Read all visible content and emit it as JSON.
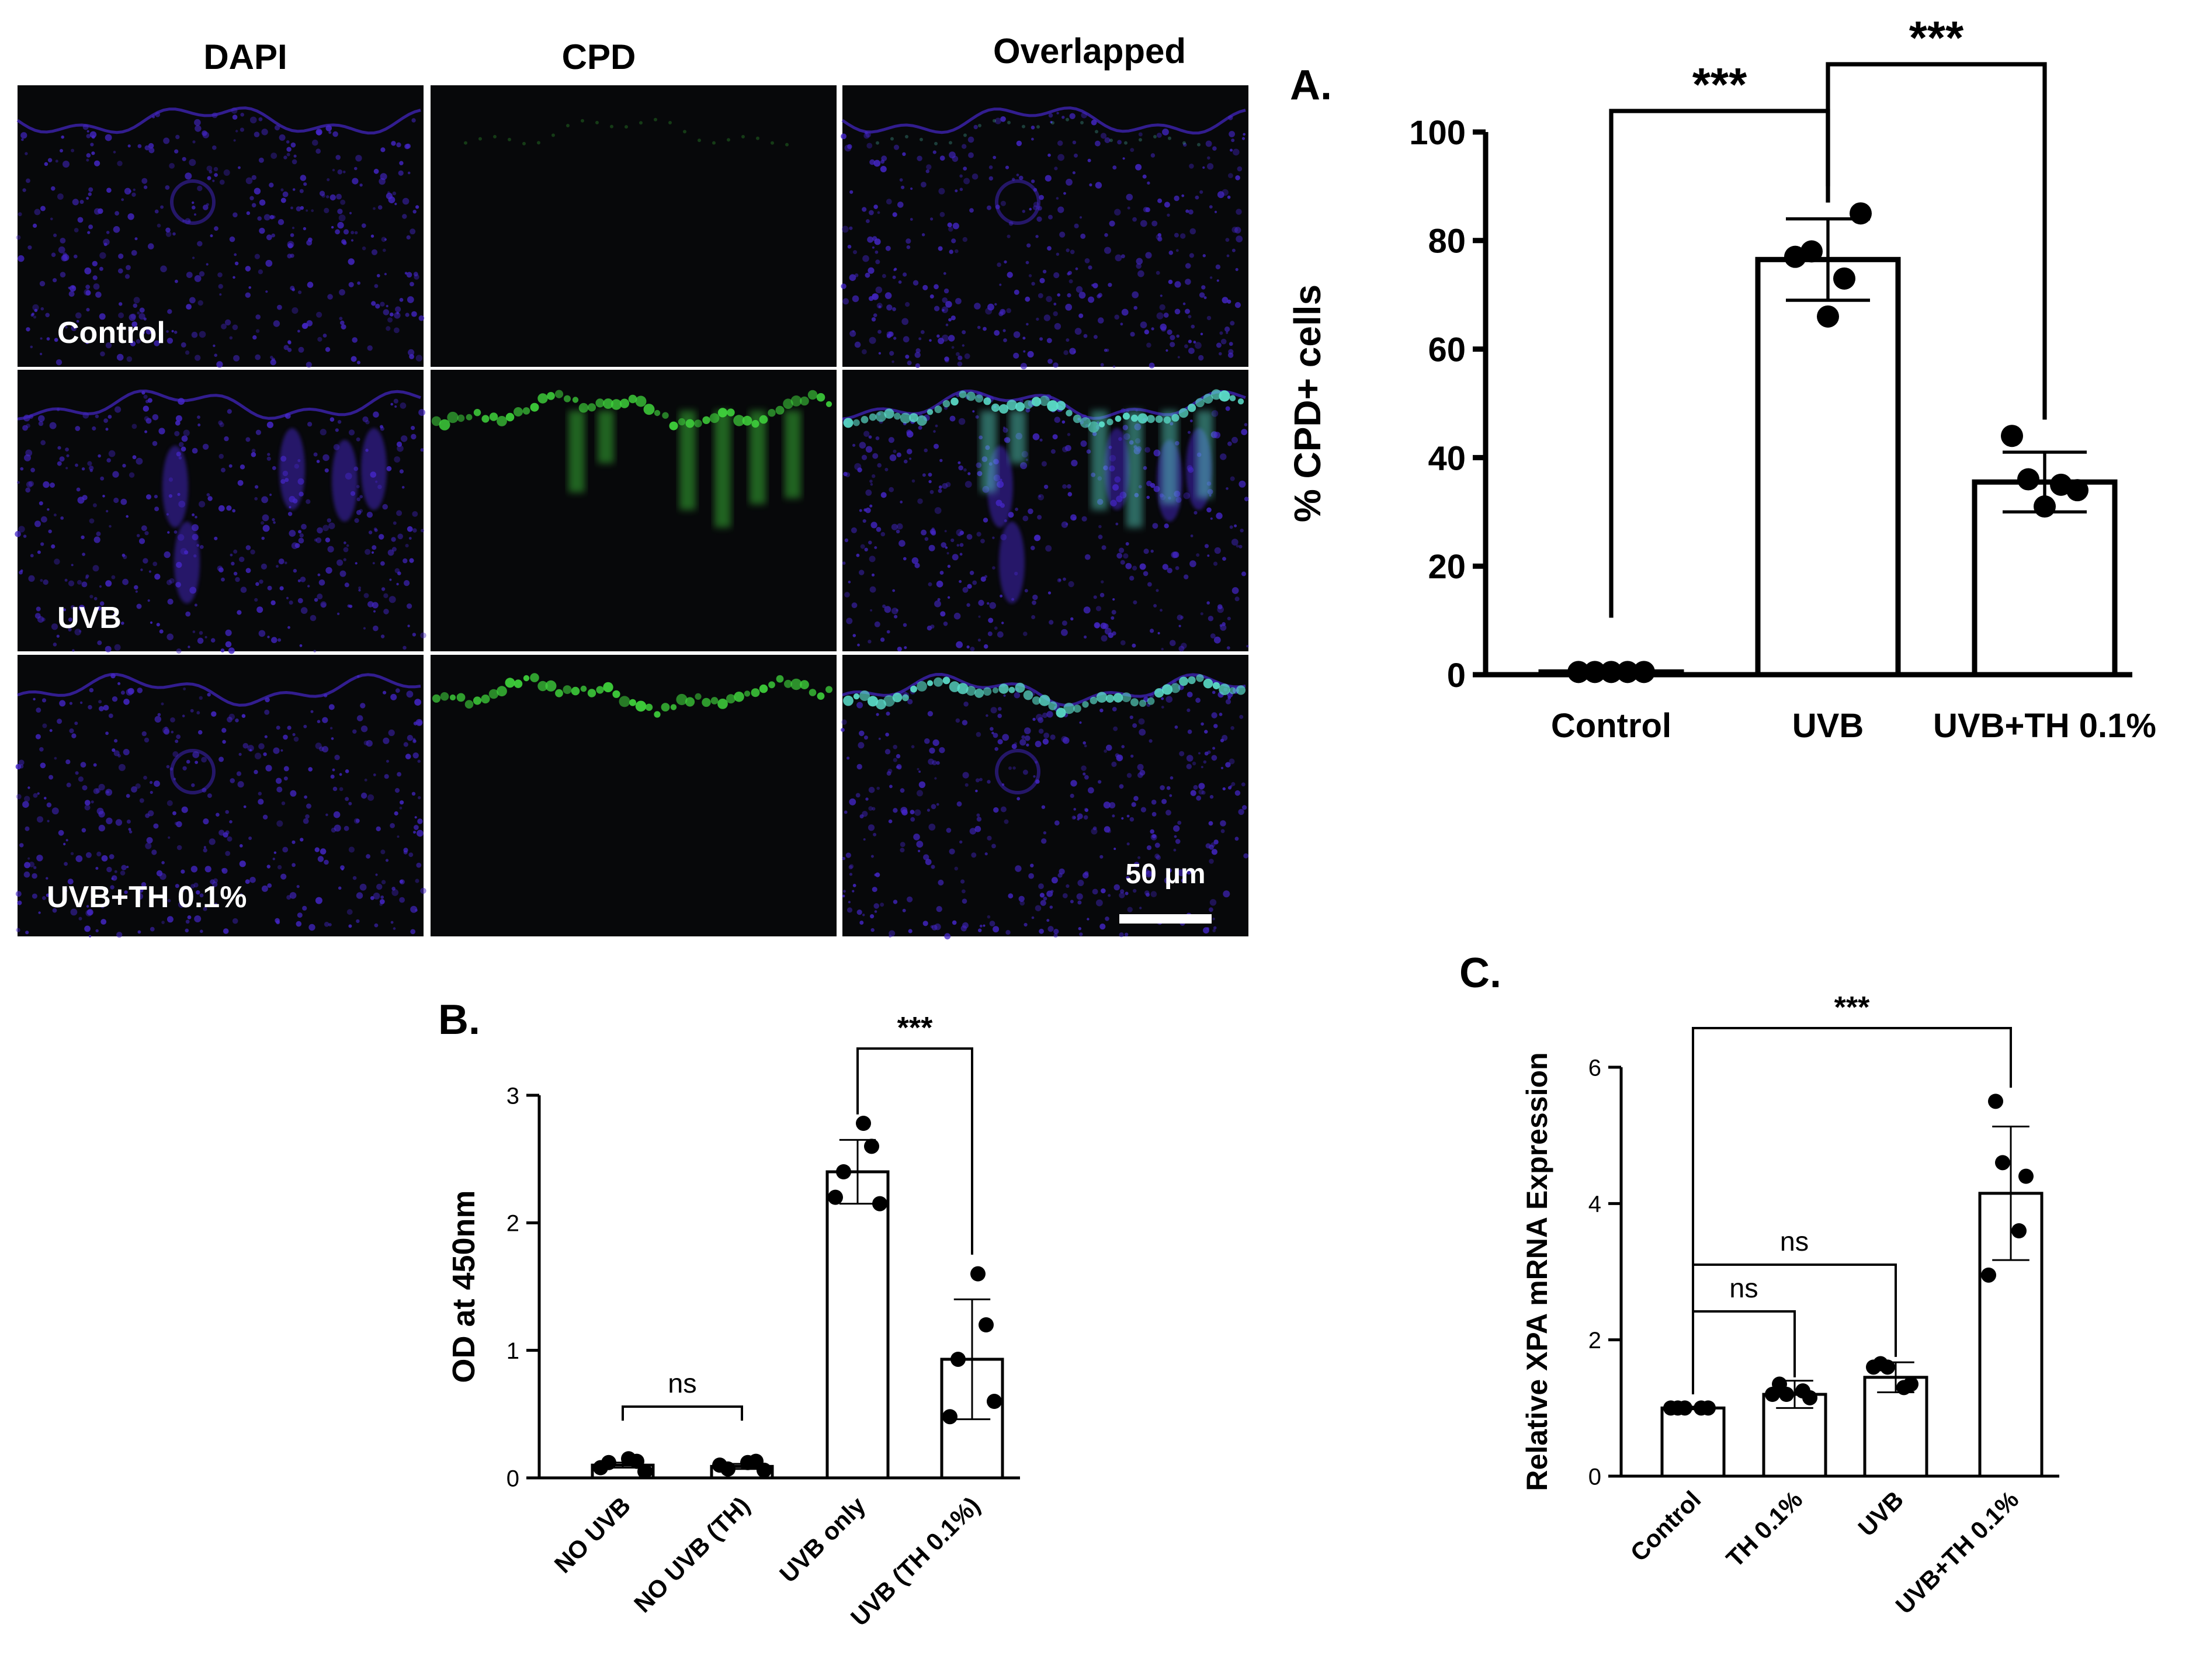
{
  "micrographs": {
    "columns": [
      "DAPI",
      "CPD",
      "Overlapped"
    ],
    "rows": [
      "Control",
      "UVB",
      "UVB+TH 0.1%"
    ],
    "scale_bar": "50 µm",
    "colors": {
      "background": "#07080a",
      "nuclei": "#4426c8",
      "cpd": "#3fd23c",
      "overlap": "#5ce0cc"
    }
  },
  "chart_data": [
    {
      "panel": "A.",
      "type": "bar",
      "categories": [
        "Control",
        "UVB",
        "UVB+TH 0.1%"
      ],
      "values": [
        0.5,
        76.5,
        35.5
      ],
      "sd": [
        0,
        7.5,
        5.5
      ],
      "points": [
        [
          0.5,
          0.5,
          0.5,
          0.5,
          0.5
        ],
        [
          77,
          85,
          78,
          66,
          73
        ],
        [
          44,
          34,
          36,
          31,
          35
        ]
      ],
      "ylabel": "% CPD+ cells",
      "ylim": [
        0,
        100
      ],
      "yticks": [
        "0",
        "20",
        "40",
        "60",
        "80",
        "100"
      ],
      "significance": [
        {
          "from": 0,
          "to": 1,
          "label": "***"
        },
        {
          "from": 1,
          "to": 2,
          "label": "***"
        }
      ]
    },
    {
      "panel": "B.",
      "type": "bar",
      "categories": [
        "NO UVB",
        "NO UVB (TH)",
        "UVB only",
        "UVB  (TH 0.1%)"
      ],
      "values": [
        0.1,
        0.09,
        2.4,
        0.93
      ],
      "sd": [
        0.02,
        0.02,
        0.25,
        0.47
      ],
      "points": [
        [
          0.12,
          0.15,
          0.13,
          0.08,
          0.05
        ],
        [
          0.07,
          0.12,
          0.13,
          0.1,
          0.06
        ],
        [
          2.4,
          2.78,
          2.6,
          2.2,
          2.15
        ],
        [
          0.93,
          1.6,
          1.2,
          0.48,
          0.6
        ]
      ],
      "ylabel": "OD at 450nm",
      "ylim": [
        0,
        3
      ],
      "yticks": [
        "0",
        "1",
        "2",
        "3"
      ],
      "significance": [
        {
          "from": 0,
          "to": 1,
          "label": "ns"
        },
        {
          "from": 2,
          "to": 3,
          "label": "***"
        }
      ]
    },
    {
      "panel": "C.",
      "type": "bar",
      "categories": [
        "Control",
        "TH 0.1%",
        "UVB",
        "UVB+TH 0.1%"
      ],
      "values": [
        1.0,
        1.2,
        1.45,
        4.15
      ],
      "sd": [
        0.02,
        0.2,
        0.22,
        0.98
      ],
      "points": [
        [
          1.0,
          1.0,
          1.0,
          1.0,
          1.0
        ],
        [
          1.35,
          1.15,
          1.2,
          1.25,
          1.2
        ],
        [
          1.65,
          1.35,
          1.6,
          1.3,
          1.6
        ],
        [
          5.5,
          4.4,
          4.6,
          3.6,
          2.95
        ]
      ],
      "ylabel": "Relative XPA mRNA Expression",
      "ylim": [
        0,
        6
      ],
      "yticks": [
        "0",
        "2",
        "4",
        "6"
      ],
      "significance": [
        {
          "from": 0,
          "to": 1,
          "label": "ns"
        },
        {
          "from": 0,
          "to": 2,
          "label": "ns"
        },
        {
          "from": 0,
          "to": 3,
          "label": "***"
        }
      ]
    }
  ]
}
